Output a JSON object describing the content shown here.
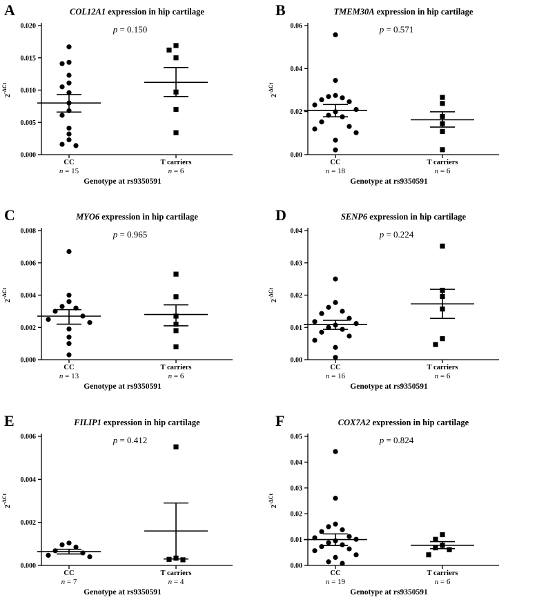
{
  "chart_data": [
    {
      "type": "scatter",
      "panel": "A",
      "gene": "COL12A1",
      "title_rest": " expression in hip cartilage",
      "p_label": "p",
      "p_value": "= 0.150",
      "ylabel_base": "2",
      "ylabel_exp": "-ΔCt",
      "xlabel": "Genotype at rs9350591",
      "ylim": [
        0,
        0.02
      ],
      "yticks": [
        "0.000",
        "0.005",
        "0.010",
        "0.015",
        "0.020"
      ],
      "groups": [
        {
          "name": "CC",
          "n_text": "= 15",
          "marker": "circle",
          "values": [
            0.0167,
            0.0143,
            0.0141,
            0.0123,
            0.0111,
            0.0105,
            0.0096,
            0.008,
            0.0068,
            0.0061,
            0.0041,
            0.0032,
            0.0023,
            0.0016,
            0.0014
          ],
          "mean": 0.008,
          "sem_lo": 0.0066,
          "sem_hi": 0.0093
        },
        {
          "name": "T carriers",
          "n_text": "= 6",
          "marker": "square",
          "values": [
            0.0169,
            0.0162,
            0.015,
            0.0097,
            0.007,
            0.0034
          ],
          "mean": 0.0112,
          "sem_lo": 0.009,
          "sem_hi": 0.0135
        }
      ]
    },
    {
      "type": "scatter",
      "panel": "B",
      "gene": "TMEM30A",
      "title_rest": " expression in hip cartilage",
      "p_label": "p",
      "p_value": "= 0.571",
      "ylabel_base": "2",
      "ylabel_exp": "-ΔCt",
      "xlabel": "Genotype at rs9350591",
      "ylim": [
        0,
        0.06
      ],
      "yticks": [
        "0.00",
        "0.02",
        "0.04",
        "0.06"
      ],
      "groups": [
        {
          "name": "CC",
          "n_text": "= 18",
          "marker": "circle",
          "values": [
            0.0557,
            0.0345,
            0.0275,
            0.027,
            0.0264,
            0.0255,
            0.0246,
            0.0231,
            0.021,
            0.0199,
            0.0183,
            0.0176,
            0.0152,
            0.0131,
            0.0119,
            0.0102,
            0.0067,
            0.0022
          ],
          "mean": 0.0205,
          "sem_lo": 0.0176,
          "sem_hi": 0.0233
        },
        {
          "name": "T carriers",
          "n_text": "= 6",
          "marker": "square",
          "values": [
            0.0266,
            0.0238,
            0.0178,
            0.0144,
            0.0108,
            0.0023
          ],
          "mean": 0.0162,
          "sem_lo": 0.0128,
          "sem_hi": 0.0199
        }
      ]
    },
    {
      "type": "scatter",
      "panel": "C",
      "gene": "MYO6",
      "title_rest": " expression in hip cartilage",
      "p_label": "p",
      "p_value": "= 0.965",
      "ylabel_base": "2",
      "ylabel_exp": "-ΔCt",
      "xlabel": "Genotype at rs9350591",
      "ylim": [
        0,
        0.008
      ],
      "yticks": [
        "0.000",
        "0.002",
        "0.004",
        "0.006",
        "0.008"
      ],
      "groups": [
        {
          "name": "CC",
          "n_text": "= 13",
          "marker": "circle",
          "values": [
            0.0067,
            0.004,
            0.0036,
            0.0033,
            0.0032,
            0.003,
            0.0027,
            0.0025,
            0.0023,
            0.0019,
            0.0014,
            0.001,
            0.0003
          ],
          "mean": 0.0027,
          "sem_lo": 0.0022,
          "sem_hi": 0.0031
        },
        {
          "name": "T carriers",
          "n_text": "= 6",
          "marker": "square",
          "values": [
            0.0053,
            0.0039,
            0.0027,
            0.0022,
            0.0018,
            0.0008
          ],
          "mean": 0.0028,
          "sem_lo": 0.0021,
          "sem_hi": 0.0034
        }
      ]
    },
    {
      "type": "scatter",
      "panel": "D",
      "gene": "SENP6",
      "title_rest": " expression in hip cartilage",
      "p_label": "p",
      "p_value": "= 0.224",
      "ylabel_base": "2",
      "ylabel_exp": "-ΔCt",
      "xlabel": "Genotype at rs9350591",
      "ylim": [
        0,
        0.04
      ],
      "yticks": [
        "0.00",
        "0.01",
        "0.02",
        "0.03",
        "0.04"
      ],
      "groups": [
        {
          "name": "CC",
          "n_text": "= 16",
          "marker": "circle",
          "values": [
            0.025,
            0.0177,
            0.0162,
            0.015,
            0.0143,
            0.0128,
            0.0118,
            0.0112,
            0.0107,
            0.01,
            0.0094,
            0.0085,
            0.0073,
            0.006,
            0.0038,
            0.0007
          ],
          "mean": 0.0109,
          "sem_lo": 0.0094,
          "sem_hi": 0.0122
        },
        {
          "name": "T carriers",
          "n_text": "= 6",
          "marker": "square",
          "values": [
            0.0352,
            0.0215,
            0.0196,
            0.0157,
            0.0065,
            0.0047
          ],
          "mean": 0.0173,
          "sem_lo": 0.0128,
          "sem_hi": 0.0218
        }
      ]
    },
    {
      "type": "scatter",
      "panel": "E",
      "gene": "FILIP1",
      "title_rest": " expression in hip cartilage",
      "p_label": "p",
      "p_value": "= 0.412",
      "ylabel_base": "2",
      "ylabel_exp": "-ΔCt",
      "xlabel": "Genotype at rs9350591",
      "ylim": [
        0,
        0.006
      ],
      "yticks": [
        "0.000",
        "0.002",
        "0.004",
        "0.006"
      ],
      "groups": [
        {
          "name": "CC",
          "n_text": "= 7",
          "marker": "circle",
          "values": [
            0.00104,
            0.00096,
            0.00085,
            0.00068,
            0.00058,
            0.00047,
            0.0004
          ],
          "mean": 0.00064,
          "sem_lo": 0.00053,
          "sem_hi": 0.00075
        },
        {
          "name": "T carriers",
          "n_text": "= 4",
          "marker": "square",
          "values": [
            0.00551,
            0.00034,
            0.00028,
            0.00026
          ],
          "mean": 0.0016,
          "sem_lo": 0.0003,
          "sem_hi": 0.0029
        }
      ]
    },
    {
      "type": "scatter",
      "panel": "F",
      "gene": "COX7A2",
      "title_rest": " expression in hip cartilage",
      "p_label": "p",
      "p_value": "= 0.824",
      "ylabel_base": "2",
      "ylabel_exp": "-ΔCt",
      "xlabel": "Genotype at rs9350591",
      "ylim": [
        0,
        0.05
      ],
      "yticks": [
        "0.00",
        "0.01",
        "0.02",
        "0.03",
        "0.04",
        "0.05"
      ],
      "groups": [
        {
          "name": "CC",
          "n_text": "= 19",
          "marker": "circle",
          "values": [
            0.0441,
            0.026,
            0.016,
            0.015,
            0.0138,
            0.0131,
            0.0112,
            0.0107,
            0.0101,
            0.0095,
            0.0088,
            0.008,
            0.0073,
            0.0064,
            0.0057,
            0.0041,
            0.0031,
            0.0014,
            0.0008
          ],
          "mean": 0.01,
          "sem_lo": 0.0077,
          "sem_hi": 0.0122
        },
        {
          "name": "T carriers",
          "n_text": "= 6",
          "marker": "square",
          "values": [
            0.0119,
            0.0101,
            0.0078,
            0.0068,
            0.0061,
            0.0041
          ],
          "mean": 0.0078,
          "sem_lo": 0.0065,
          "sem_hi": 0.0092
        }
      ]
    }
  ]
}
